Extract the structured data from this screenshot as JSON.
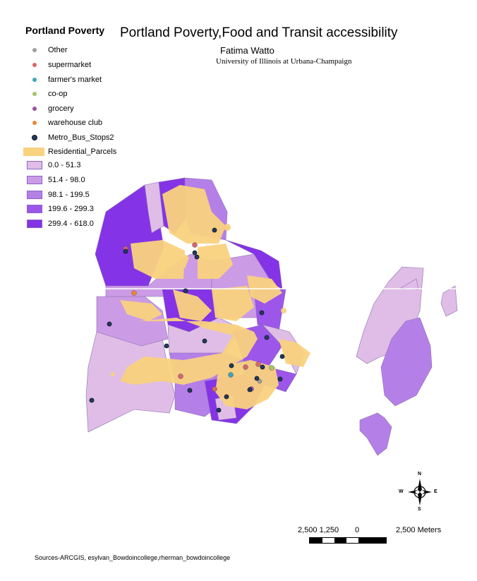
{
  "title": "Portland Poverty,Food and Transit accessibility",
  "author": "Fatima Watto",
  "institution": "University of Illinois at Urbana-Champaign",
  "legend": {
    "title": "Portland Poverty",
    "points": [
      {
        "label": "Other",
        "color": "#a0a0a0"
      },
      {
        "label": "supermarket",
        "color": "#d9666b"
      },
      {
        "label": "farmer's market",
        "color": "#3ea4b8"
      },
      {
        "label": "co-op",
        "color": "#a8c46a"
      },
      {
        "label": "grocery",
        "color": "#9b4fa0"
      },
      {
        "label": "warehouse club",
        "color": "#e88a3a"
      },
      {
        "label": "Metro_Bus_Stops2",
        "color": "#1f3a66"
      }
    ],
    "parcels": {
      "label": "Residential_Parcels",
      "color": "#f9d27f"
    },
    "classes": [
      {
        "label": "0.0 - 51.3",
        "color": "#dfbde6"
      },
      {
        "label": "51.4 - 98.0",
        "color": "#cc9be6"
      },
      {
        "label": "98.1 - 199.5",
        "color": "#b57fe8"
      },
      {
        "label": "199.6 - 299.3",
        "color": "#9c56ea"
      },
      {
        "label": "299.4 - 618.0",
        "color": "#8533e6"
      }
    ]
  },
  "north_arrow": {
    "n": "N",
    "s": "S",
    "e": "E",
    "w": "W"
  },
  "scale": {
    "left_labels": "2,500 1,250",
    "zero": "0",
    "right_label": "2,500 Meters"
  },
  "sources": "Sources-ARCGIS, esylvan_Bowdoincollege,rherman_bowdoincollege"
}
